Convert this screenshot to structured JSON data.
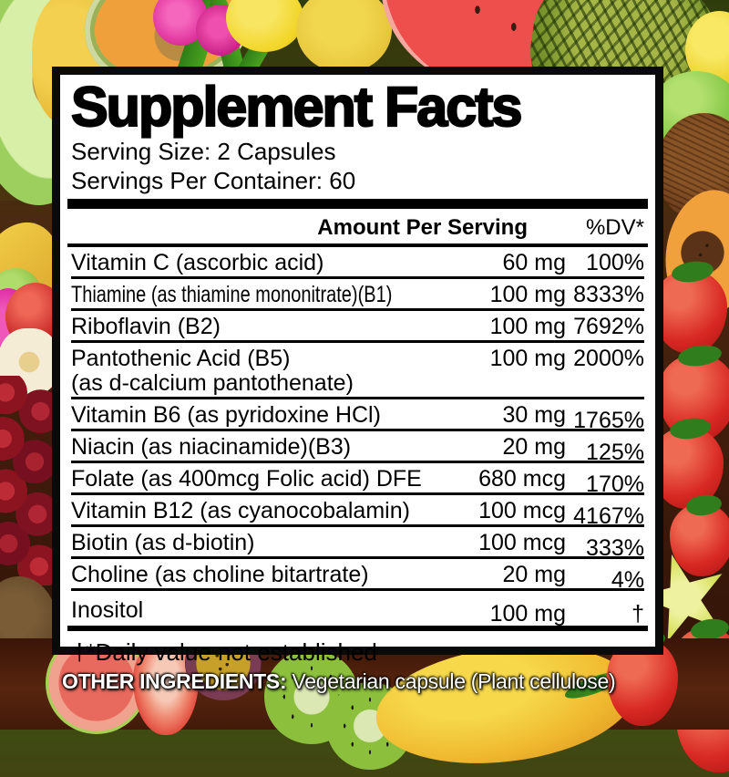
{
  "panel": {
    "title": "Supplement Facts",
    "serving_size": "Serving Size: 2 Capsules",
    "servings_per_container": "Servings Per Container: 60",
    "columns": {
      "amount": "Amount Per Serving",
      "dv": "%DV*"
    },
    "rows": [
      {
        "name": "Vitamin C (ascorbic acid)",
        "amount": "60 mg",
        "dv": "100%"
      },
      {
        "name": "Thiamine (as thiamine mononitrate)(B1)",
        "amount": "100 mg",
        "dv": "8333%"
      },
      {
        "name": "Riboflavin (B2)",
        "amount": "100 mg",
        "dv": "7692%"
      },
      {
        "name": "Pantothenic Acid (B5)",
        "name2": "(as d-calcium pantothenate)",
        "amount": "100 mg",
        "dv": "2000%"
      },
      {
        "name": "Vitamin B6 (as pyridoxine HCl)",
        "amount": "30 mg",
        "dv": "1765%"
      },
      {
        "name": "Niacin (as niacinamide)(B3)",
        "amount": "20 mg",
        "dv": "125%"
      },
      {
        "name": "Folate (as 400mcg Folic acid) DFE",
        "amount": "680 mcg",
        "dv": "170%"
      },
      {
        "name": "Vitamin B12 (as cyanocobalamin)",
        "amount": "100 mcg",
        "dv": "4167%"
      },
      {
        "name": "Biotin (as d-biotin)",
        "amount": "100 mcg",
        "dv": "333%"
      },
      {
        "name": "Choline (as choline bitartrate)",
        "amount": "20 mg",
        "dv": "4%"
      },
      {
        "name": "Inositol",
        "amount": "100 mg",
        "dv": "†"
      }
    ],
    "footnote": "†*Daily value not established"
  },
  "footer": {
    "other_ingredients_label": "OTHER INGREDIENTS:",
    "other_ingredients_value": " Vegetarian capsule (Plant cellulose)"
  },
  "colors": {
    "panel_background": "#ffffff",
    "panel_text": "#000000",
    "footer_text": "#ffffff"
  }
}
